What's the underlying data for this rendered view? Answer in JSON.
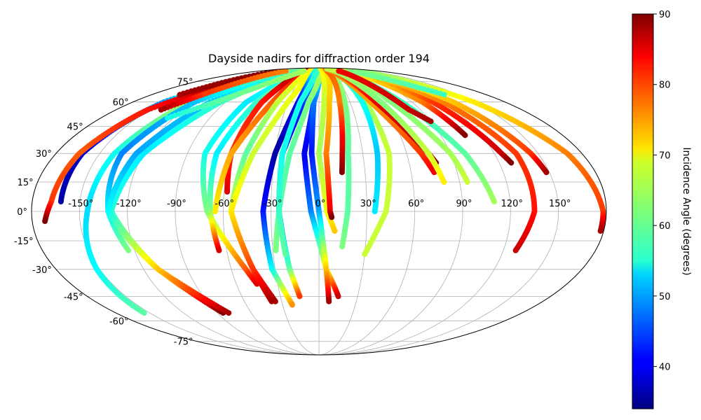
{
  "chart_data": {
    "type": "scatter",
    "projection": "mollweide",
    "title": "Dayside nadirs for diffraction order 194",
    "grid": true,
    "lon_ticks": [
      -150,
      -120,
      -90,
      -60,
      -30,
      0,
      30,
      60,
      90,
      120,
      150
    ],
    "lon_tick_labels": [
      "-150°",
      "-120°",
      "-90°",
      "-60°",
      "-30°",
      "0°",
      "30°",
      "60°",
      "90°",
      "120°",
      "150°"
    ],
    "lat_ticks": [
      75,
      60,
      45,
      30,
      15,
      0,
      -15,
      -30,
      -45,
      -60,
      -75
    ],
    "lat_tick_labels": [
      "75°",
      "60°",
      "45°",
      "30°",
      "15°",
      "0°",
      "-15°",
      "-30°",
      "-45°",
      "-60°",
      "-75°"
    ],
    "colorbar": {
      "label": "Incidence Angle (degrees)",
      "colormap": "jet",
      "min": 34,
      "max": 90,
      "ticks": [
        40,
        50,
        60,
        70,
        80,
        90
      ],
      "tick_labels": [
        "40",
        "50",
        "60",
        "70",
        "80",
        "90"
      ]
    },
    "tracks": [
      {
        "lat": [
          85,
          60,
          30,
          0,
          -30,
          -55
        ],
        "lon": [
          -90,
          -125,
          -140,
          -145,
          -152,
          -155
        ],
        "inc": [
          72,
          64,
          56,
          53,
          55,
          60
        ]
      },
      {
        "lat": [
          80,
          60,
          30,
          5
        ],
        "lon": [
          -125,
          -150,
          -162,
          -162
        ],
        "inc": [
          72,
          50,
          38,
          36
        ]
      },
      {
        "lat": [
          78,
          55,
          30,
          5,
          -5
        ],
        "lon": [
          -120,
          -152,
          -164,
          -168,
          -172
        ],
        "inc": [
          90,
          82,
          78,
          80,
          90
        ]
      },
      {
        "lat": [
          85,
          60,
          30,
          0,
          -20
        ],
        "lon": [
          -80,
          -120,
          -135,
          -132,
          -124
        ],
        "inc": [
          62,
          52,
          48,
          54,
          62
        ]
      },
      {
        "lat": [
          85,
          60,
          30,
          0,
          -30,
          -55
        ],
        "lon": [
          -60,
          -95,
          -120,
          -130,
          -110,
          -85
        ],
        "inc": [
          65,
          58,
          54,
          57,
          70,
          90
        ]
      },
      {
        "lat": [
          85,
          60,
          30,
          0,
          -30,
          -55
        ],
        "lon": [
          -60,
          -105,
          -125,
          -132,
          -110,
          -80
        ],
        "inc": [
          60,
          52,
          50,
          55,
          72,
          88
        ]
      },
      {
        "lat": [
          88,
          60,
          30,
          0,
          -30,
          -38
        ],
        "lon": [
          -40,
          -70,
          -78,
          -70,
          -50,
          -45
        ],
        "inc": [
          58,
          54,
          56,
          62,
          78,
          85
        ]
      },
      {
        "lat": [
          88,
          60,
          30,
          0,
          -20
        ],
        "lon": [
          -35,
          -60,
          -70,
          -68,
          -65
        ],
        "inc": [
          68,
          58,
          54,
          62,
          85
        ]
      },
      {
        "lat": [
          88,
          60,
          30,
          10
        ],
        "lon": [
          -40,
          -55,
          -60,
          -58
        ],
        "inc": [
          90,
          82,
          80,
          85
        ]
      },
      {
        "lat": [
          88,
          60,
          30,
          0
        ],
        "lon": [
          -30,
          -45,
          -60,
          -65
        ],
        "inc": [
          85,
          78,
          74,
          70
        ]
      },
      {
        "lat": [
          88,
          60,
          30,
          0,
          -30,
          -48
        ],
        "lon": [
          -25,
          -40,
          -50,
          -55,
          -45,
          -35
        ],
        "inc": [
          70,
          66,
          60,
          66,
          80,
          88
        ]
      },
      {
        "lat": [
          85,
          60,
          30,
          0,
          -30,
          -48
        ],
        "lon": [
          -15,
          -30,
          -45,
          -55,
          -45,
          -38
        ],
        "inc": [
          70,
          68,
          66,
          70,
          80,
          88
        ]
      },
      {
        "lat": [
          88,
          60,
          30,
          0,
          -30,
          -50
        ],
        "lon": [
          -10,
          -20,
          -30,
          -35,
          -32,
          -22
        ],
        "inc": [
          60,
          40,
          36,
          42,
          55,
          75
        ]
      },
      {
        "lat": [
          88,
          60,
          30,
          0,
          -30,
          -45
        ],
        "lon": [
          -5,
          -15,
          -25,
          -25,
          -20,
          -15
        ],
        "inc": [
          58,
          44,
          38,
          46,
          60,
          80
        ]
      },
      {
        "lat": [
          88,
          60,
          30,
          0,
          -30,
          -45
        ],
        "lon": [
          5,
          -5,
          -10,
          -5,
          5,
          15
        ],
        "inc": [
          62,
          46,
          40,
          48,
          68,
          86
        ]
      },
      {
        "lat": [
          88,
          60,
          30,
          0,
          -30,
          -48
        ],
        "lon": [
          0,
          -5,
          -5,
          0,
          5,
          8
        ],
        "inc": [
          60,
          48,
          42,
          50,
          72,
          88
        ]
      },
      {
        "lat": [
          85,
          60,
          30,
          0,
          -20
        ],
        "lon": [
          5,
          -10,
          -20,
          -25,
          -28
        ],
        "inc": [
          66,
          62,
          60,
          60,
          62
        ]
      },
      {
        "lat": [
          85,
          60,
          30,
          0,
          -22
        ],
        "lon": [
          -5,
          -18,
          -25,
          -25,
          -22
        ],
        "inc": [
          58,
          56,
          56,
          58,
          60
        ]
      },
      {
        "lat": [
          88,
          60,
          30,
          0,
          -10
        ],
        "lon": [
          10,
          5,
          0,
          5,
          10
        ],
        "inc": [
          70,
          66,
          64,
          68,
          72
        ]
      },
      {
        "lat": [
          88,
          60,
          30,
          0,
          -3
        ],
        "lon": [
          20,
          10,
          5,
          7,
          8
        ],
        "inc": [
          70,
          72,
          76,
          84,
          90
        ]
      },
      {
        "lat": [
          85,
          60,
          30,
          0,
          -18
        ],
        "lon": [
          30,
          25,
          20,
          18,
          15
        ],
        "inc": [
          64,
          62,
          60,
          60,
          62
        ]
      },
      {
        "lat": [
          85,
          60,
          30,
          0,
          -22
        ],
        "lon": [
          40,
          45,
          48,
          42,
          30
        ],
        "inc": [
          64,
          64,
          66,
          66,
          66
        ]
      },
      {
        "lat": [
          85,
          60,
          30,
          0
        ],
        "lon": [
          40,
          42,
          40,
          35
        ],
        "inc": [
          60,
          56,
          52,
          54
        ]
      },
      {
        "lat": [
          85,
          60,
          30,
          20
        ],
        "lon": [
          25,
          20,
          16,
          15
        ],
        "inc": [
          78,
          76,
          86,
          90
        ]
      },
      {
        "lat": [
          88,
          60,
          30,
          20
        ],
        "lon": [
          35,
          50,
          70,
          75
        ],
        "inc": [
          76,
          74,
          80,
          84
        ]
      },
      {
        "lat": [
          88,
          60,
          30,
          25
        ],
        "lon": [
          40,
          55,
          75,
          78
        ],
        "inc": [
          76,
          84,
          88,
          90
        ]
      },
      {
        "lat": [
          88,
          60,
          30,
          15
        ],
        "lon": [
          45,
          60,
          75,
          80
        ],
        "inc": [
          64,
          62,
          66,
          70
        ]
      },
      {
        "lat": [
          88,
          60,
          30,
          15
        ],
        "lon": [
          55,
          70,
          90,
          95
        ],
        "inc": [
          66,
          62,
          64,
          66
        ]
      },
      {
        "lat": [
          85,
          60,
          30,
          5
        ],
        "lon": [
          60,
          80,
          100,
          110
        ],
        "inc": [
          60,
          58,
          60,
          64
        ]
      },
      {
        "lat": [
          85,
          60,
          40
        ],
        "lon": [
          80,
          100,
          108
        ],
        "inc": [
          68,
          76,
          90
        ]
      },
      {
        "lat": [
          85,
          60,
          30,
          25
        ],
        "lon": [
          90,
          110,
          125,
          128
        ],
        "inc": [
          68,
          80,
          86,
          90
        ]
      },
      {
        "lat": [
          85,
          60,
          30,
          0,
          -20
        ],
        "lon": [
          100,
          120,
          135,
          135,
          128
        ],
        "inc": [
          70,
          76,
          80,
          82,
          86
        ]
      },
      {
        "lat": [
          85,
          60,
          30,
          20
        ],
        "lon": [
          110,
          130,
          145,
          148
        ],
        "inc": [
          68,
          72,
          80,
          88
        ]
      },
      {
        "lat": [
          85,
          60,
          30,
          0,
          -10
        ],
        "lon": [
          120,
          150,
          170,
          178,
          178
        ],
        "inc": [
          62,
          70,
          76,
          80,
          88
        ]
      },
      {
        "lat": [
          85,
          65
        ],
        "lon": [
          -120,
          -150
        ],
        "inc": [
          90,
          88
        ]
      },
      {
        "lat": [
          85,
          65,
          55
        ],
        "lon": [
          -100,
          -125,
          -140
        ],
        "inc": [
          76,
          80,
          88
        ]
      },
      {
        "lat": [
          85,
          60,
          50
        ],
        "lon": [
          -45,
          -100,
          -125
        ],
        "inc": [
          64,
          60,
          56
        ]
      },
      {
        "lat": [
          85,
          65
        ],
        "lon": [
          90,
          135
        ],
        "inc": [
          62,
          58
        ]
      },
      {
        "lat": [
          85,
          55,
          48
        ],
        "lon": [
          60,
          80,
          90
        ],
        "inc": [
          84,
          86,
          88
        ]
      }
    ]
  }
}
